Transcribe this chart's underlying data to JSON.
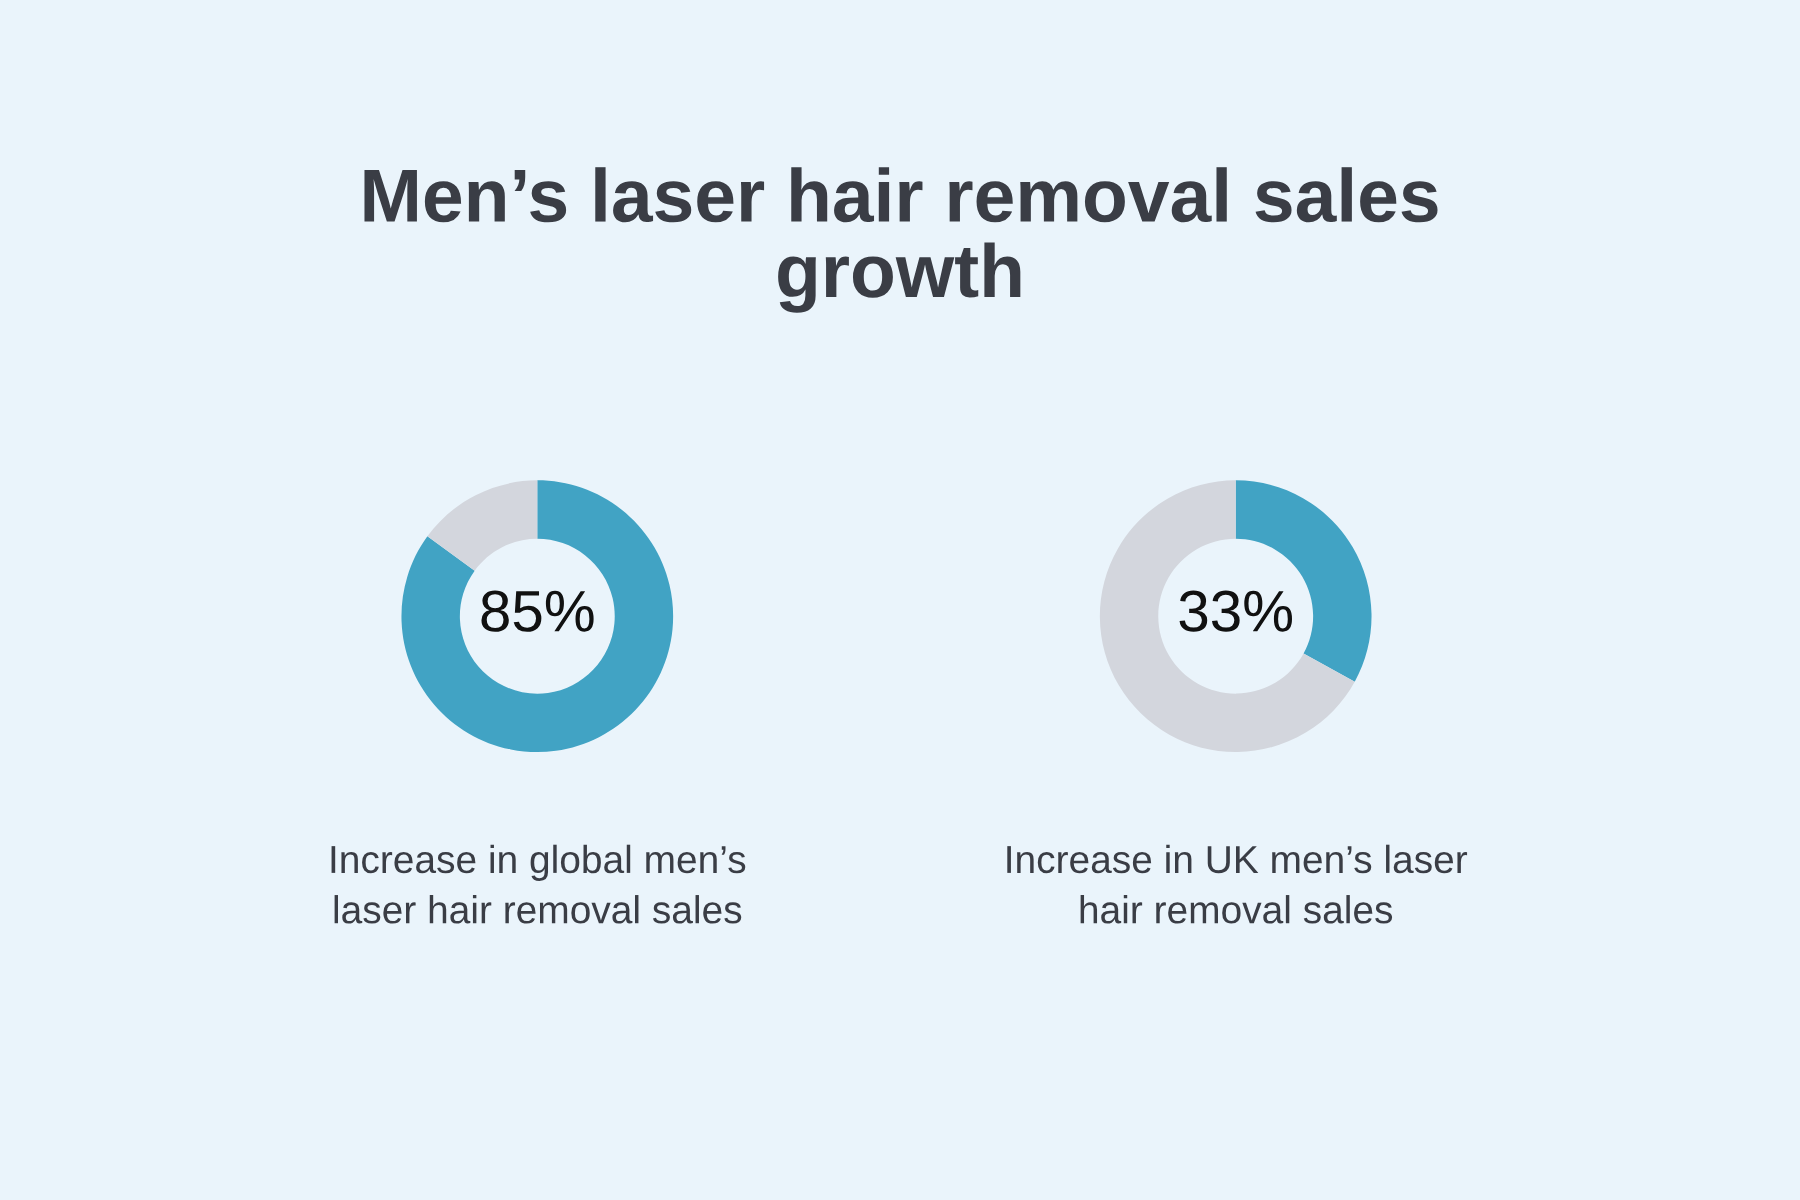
{
  "chart_data": [
    {
      "type": "donut",
      "title": "Men’s laser hair removal sales\ngrowth",
      "categories": [
        null,
        null
      ],
      "values": [
        85,
        15
      ],
      "colors": [
        "#41a3c4",
        "#d3d6dd"
      ],
      "value_labels": [
        "85%",
        null
      ],
      "annotations": [
        "Increase in global men’s\nlaser hair removal sales"
      ]
    },
    {
      "type": "donut",
      "categories": [
        null,
        null
      ],
      "values": [
        33,
        67
      ],
      "colors": [
        "#41a3c4",
        "#d3d6dd"
      ],
      "value_labels": [
        "33%",
        null
      ],
      "annotations": [
        "Increase in UK men’s laser\nhair removal sales"
      ]
    }
  ]
}
